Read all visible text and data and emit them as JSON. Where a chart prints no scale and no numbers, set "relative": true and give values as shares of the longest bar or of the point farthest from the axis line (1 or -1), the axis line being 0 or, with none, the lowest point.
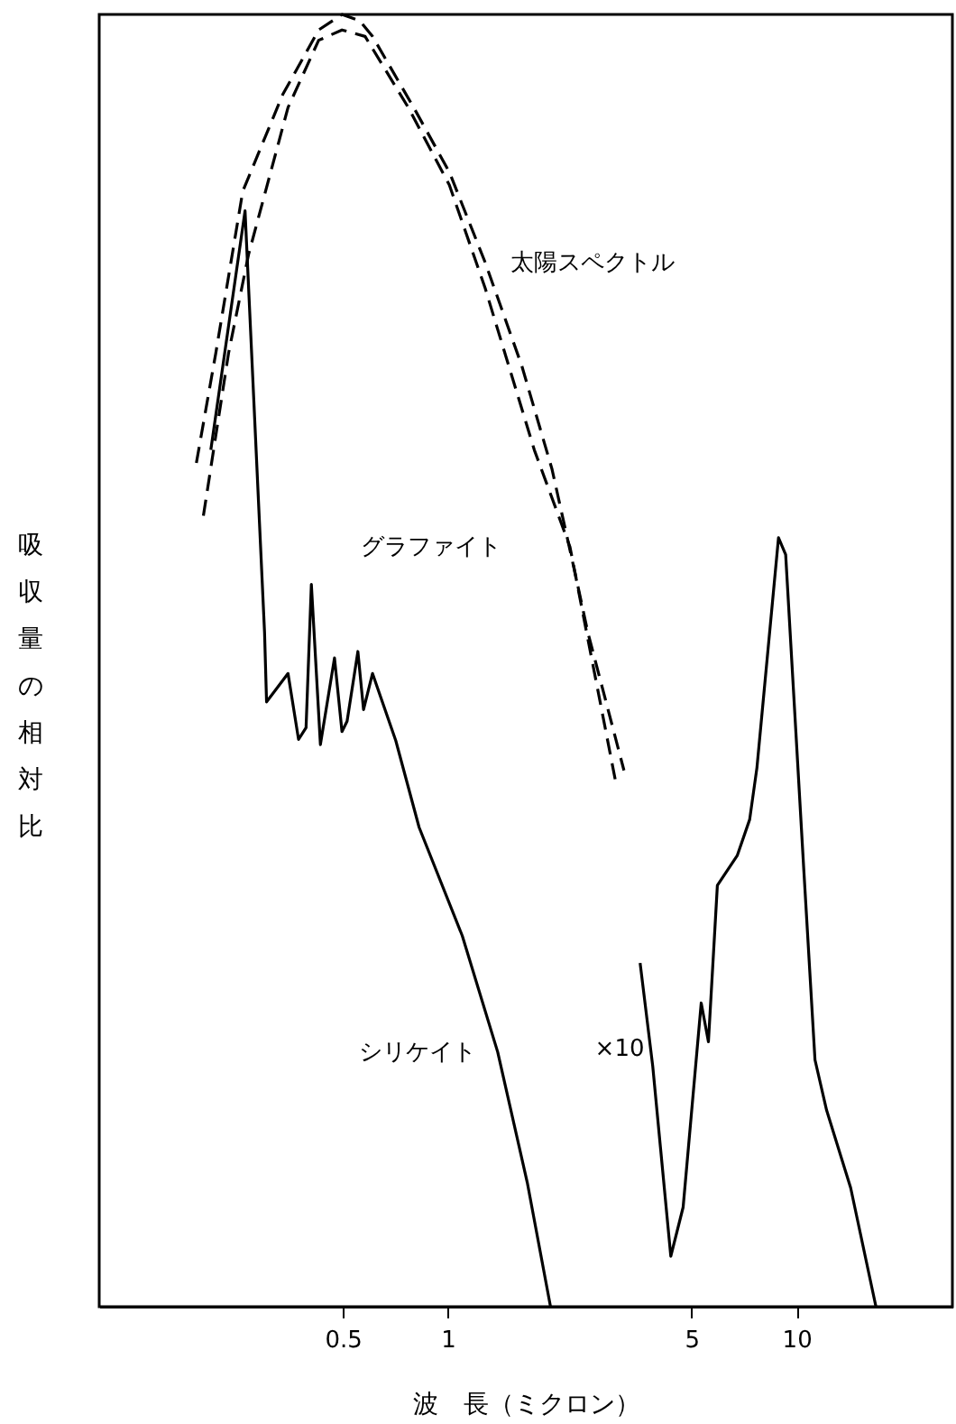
{
  "chart_data": {
    "type": "line",
    "relative": true,
    "xlabel": "波　長（ミクロン）",
    "ylabel": "吸収量の相対比",
    "log": "x",
    "xlim": [
      0.1,
      28
    ],
    "xticks": [
      0.5,
      1,
      5,
      10
    ],
    "grid": false,
    "marker": "none",
    "annotations": [
      "×10"
    ],
    "series": [
      {
        "name": "太陽スペクトル",
        "color": "#000000",
        "line_style": "dashed",
        "x": [
          0.19,
          0.216,
          0.258,
          0.336,
          0.426,
          0.497,
          0.559,
          0.608,
          0.798,
          1.01,
          1.28,
          1.63,
          1.99,
          2.32,
          2.52,
          3.2
        ],
        "values": [
          0.653,
          0.738,
          0.863,
          0.938,
          0.988,
          1,
          0.995,
          0.983,
          0.928,
          0.878,
          0.808,
          0.728,
          0.648,
          0.567,
          0.522,
          0.415
        ]
      },
      {
        "name": "グラファイト",
        "color": "#000000",
        "line_style": "dashed",
        "x": [
          0.199,
          0.235,
          0.268,
          0.348,
          0.426,
          0.497,
          0.579,
          0.77,
          1.01,
          1.28,
          1.77,
          2.24,
          3.02
        ],
        "values": [
          0.612,
          0.738,
          0.814,
          0.928,
          0.98,
          0.988,
          0.983,
          0.928,
          0.868,
          0.788,
          0.663,
          0.588,
          0.408
        ]
      },
      {
        "name": "シリケイト",
        "color": "#000000",
        "line_style": "solid",
        "x": [
          0.209,
          0.262,
          0.298,
          0.302,
          0.348,
          0.373,
          0.392,
          0.406,
          0.431,
          0.473,
          0.497,
          0.514,
          0.552,
          0.573,
          0.608,
          0.709,
          0.827,
          1.1,
          1.39,
          1.69,
          1.97,
          2.5,
          3.56,
          3.87,
          4.36,
          4.73,
          5.33,
          5.59,
          5.93,
          6.76,
          7.34,
          7.7,
          8.88,
          9.31,
          10.5,
          11.3,
          12.2,
          14.3,
          16.9
        ],
        "values": [
          0.663,
          0.848,
          0.522,
          0.468,
          0.49,
          0.439,
          0.448,
          0.559,
          0.435,
          0.502,
          0.445,
          0.453,
          0.507,
          0.462,
          0.49,
          0.438,
          0.371,
          0.287,
          0.197,
          0.096,
          0,
          null,
          0.266,
          0.186,
          0.039,
          0.077,
          0.235,
          0.205,
          0.326,
          0.349,
          0.377,
          0.417,
          0.595,
          0.582,
          0.337,
          0.191,
          0.152,
          0.092,
          0
        ]
      }
    ]
  }
}
